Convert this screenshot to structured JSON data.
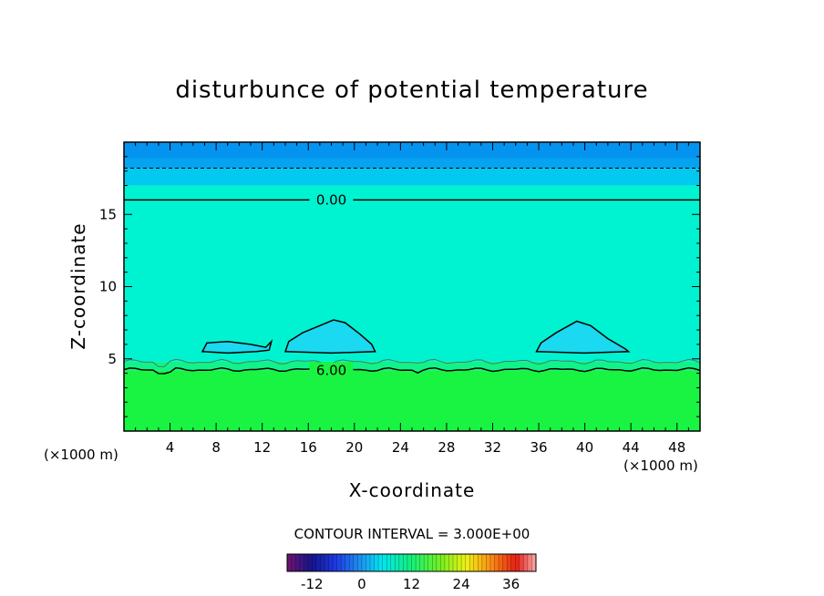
{
  "chart_data": {
    "type": "heatmap",
    "title": "disturbunce of potential temperature",
    "xlabel": "X-coordinate",
    "ylabel": "Z-coordinate",
    "x_unit": "(×1000 m)",
    "xlim": [
      0,
      50
    ],
    "ylim": [
      0,
      20
    ],
    "xticks": [
      4,
      8,
      12,
      16,
      20,
      24,
      28,
      32,
      36,
      40,
      44,
      48
    ],
    "yticks": [
      5,
      10,
      15
    ],
    "contour_interval": "CONTOUR INTERVAL = 3.000E+00",
    "contour_labels": [
      {
        "text": "0.00",
        "x": 18,
        "z": 16
      },
      {
        "text": "6.00",
        "x": 18,
        "z": 4.2
      }
    ],
    "regions": [
      {
        "z0": 0,
        "z1": 4.2,
        "color": "#19f442"
      },
      {
        "z0": 4.2,
        "z1": 4.8,
        "color": "#11f38a"
      },
      {
        "z0": 4.8,
        "z1": 17.0,
        "color": "#00f3d0"
      },
      {
        "z0": 17.0,
        "z1": 18.2,
        "color": "#03c8f0"
      },
      {
        "z0": 18.2,
        "z1": 20,
        "color": "#06a3f0"
      }
    ],
    "colorbar": {
      "ticks": [
        "-12",
        "0",
        "12",
        "24",
        "36"
      ],
      "tick_values": [
        -12,
        0,
        12,
        24,
        36
      ],
      "range": [
        -18,
        42
      ]
    }
  }
}
